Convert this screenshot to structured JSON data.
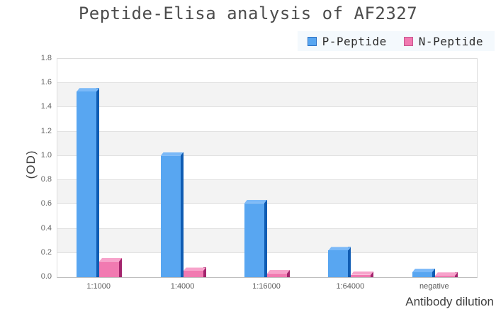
{
  "title": "Peptide-Elisa analysis of AF2327",
  "chart_data": {
    "type": "bar",
    "categories": [
      "1:1000",
      "1:4000",
      "1:16000",
      "1:64000",
      "negative"
    ],
    "series": [
      {
        "name": "P-Peptide",
        "values": [
          1.53,
          1.0,
          0.61,
          0.22,
          0.04
        ],
        "color": "#58a6f1",
        "top_color": "#7bb9f8",
        "side_color": "#0f5cb3",
        "legend_border": "#2a6fc2"
      },
      {
        "name": "N-Peptide",
        "values": [
          0.13,
          0.05,
          0.03,
          0.02,
          0.01
        ],
        "color": "#f17ab1",
        "top_color": "#f7a3cb",
        "side_color": "#a3256d",
        "legend_border": "#c9548f"
      }
    ],
    "xlabel": "Antibody dilution",
    "ylabel": "(OD)",
    "ylim": [
      0,
      1.8
    ],
    "ytick_step": 0.2,
    "ytick_labels": [
      "0.0",
      "0.2",
      "0.4",
      "0.6",
      "0.8",
      "1.0",
      "1.2",
      "1.4",
      "1.6",
      "1.8"
    ],
    "legend_position": "top-right",
    "grid": true,
    "band_fill_color": "#f3f3f3",
    "legend_background": "#f4f9fd"
  }
}
